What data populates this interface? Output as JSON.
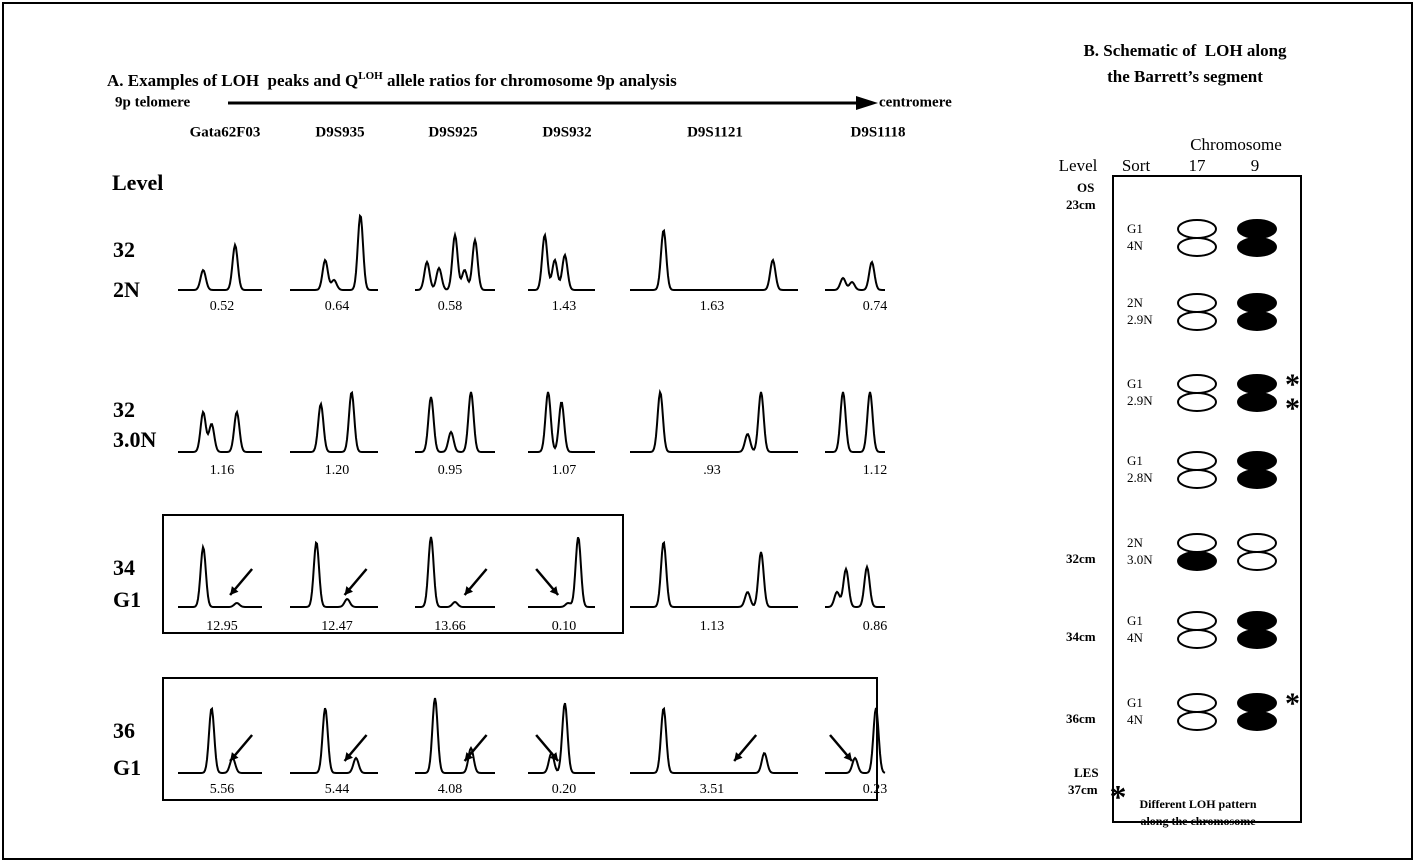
{
  "panel_a": {
    "title": [
      "A. Examples of LOH  peaks and Q",
      "LOH",
      " allele ratios for chromosome 9p analysis"
    ],
    "axis_start": "9p telomere",
    "axis_end": "centromere",
    "markers": [
      "Gata62F03",
      "D9S935",
      "D9S925",
      "D9S932",
      "D9S1121",
      "D9S1118"
    ],
    "level_header": "Level",
    "rows": [
      {
        "level": "32",
        "sort": "2N",
        "ratios": [
          "0.52",
          "0.64",
          "0.58",
          "1.43",
          "1.63",
          "0.74"
        ]
      },
      {
        "level": "32",
        "sort": "3.0N",
        "ratios": [
          "1.16",
          "1.20",
          "0.95",
          "1.07",
          ".93",
          "1.12"
        ]
      },
      {
        "level": "34",
        "sort": "G1",
        "ratios": [
          "12.95",
          "12.47",
          "13.66",
          "0.10",
          "1.13",
          "0.86"
        ]
      },
      {
        "level": "36",
        "sort": "G1",
        "ratios": [
          "5.56",
          "5.44",
          "4.08",
          "0.20",
          "3.51",
          "0.23"
        ]
      }
    ]
  },
  "panel_b": {
    "title": [
      "B. Schematic of  LOH along",
      "the Barrett’s segment"
    ],
    "chromosome_header": "Chromosome",
    "headers": [
      "Level",
      "Sort",
      "17",
      "9"
    ],
    "top_label": [
      "OS",
      "23cm"
    ],
    "bottom_label": [
      "LES",
      "37cm"
    ],
    "rows": [
      {
        "sort": [
          "G1",
          "4N"
        ],
        "chr17": [
          false,
          false
        ],
        "chr9": [
          true,
          true
        ],
        "star": [
          false,
          false
        ]
      },
      {
        "sort": [
          "2N",
          "2.9N"
        ],
        "chr17": [
          false,
          false
        ],
        "chr9": [
          true,
          true
        ],
        "star": [
          false,
          false
        ]
      },
      {
        "sort": [
          "G1",
          "2.9N"
        ],
        "chr17": [
          false,
          false
        ],
        "chr9": [
          true,
          true
        ],
        "star": [
          true,
          true
        ]
      },
      {
        "sort": [
          "G1",
          "2.8N"
        ],
        "chr17": [
          false,
          false
        ],
        "chr9": [
          true,
          true
        ],
        "star": [
          false,
          false
        ]
      },
      {
        "level": "32cm",
        "sort": [
          "2N",
          "3.0N"
        ],
        "chr17": [
          false,
          true
        ],
        "chr9": [
          false,
          false
        ],
        "star": [
          false,
          false
        ]
      },
      {
        "level": "34cm",
        "sort": [
          "G1",
          "4N"
        ],
        "chr17": [
          false,
          false
        ],
        "chr9": [
          true,
          true
        ],
        "star": [
          false,
          false
        ]
      },
      {
        "level": "36cm",
        "sort": [
          "G1",
          "4N"
        ],
        "chr17": [
          false,
          false
        ],
        "chr9": [
          true,
          true
        ],
        "star": [
          true,
          false
        ]
      }
    ],
    "footnote": [
      "Different LOH pattern",
      "along the chromosome"
    ]
  }
}
